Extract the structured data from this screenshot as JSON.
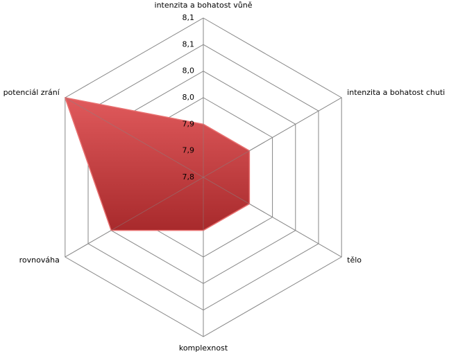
{
  "chart_data": {
    "type": "radar",
    "categories": [
      "intenzita a bohatost vůně",
      "intenzita a bohatost chuti",
      "tělo",
      "komplexnost",
      "rovnováha",
      "potenciál zrání"
    ],
    "values": [
      7.9,
      7.9,
      7.9,
      7.9,
      8.0,
      8.1
    ],
    "color": "#c8393b",
    "ylim": [
      7.8,
      8.1
    ],
    "yticks": [
      {
        "value": 7.8,
        "label": "7,8"
      },
      {
        "value": 7.85,
        "label": "7,9"
      },
      {
        "value": 7.9,
        "label": "7,9"
      },
      {
        "value": 7.95,
        "label": "8,0"
      },
      {
        "value": 8.0,
        "label": "8,0"
      },
      {
        "value": 8.05,
        "label": "8,1"
      },
      {
        "value": 8.1,
        "label": "8,1"
      }
    ],
    "grid": true
  }
}
